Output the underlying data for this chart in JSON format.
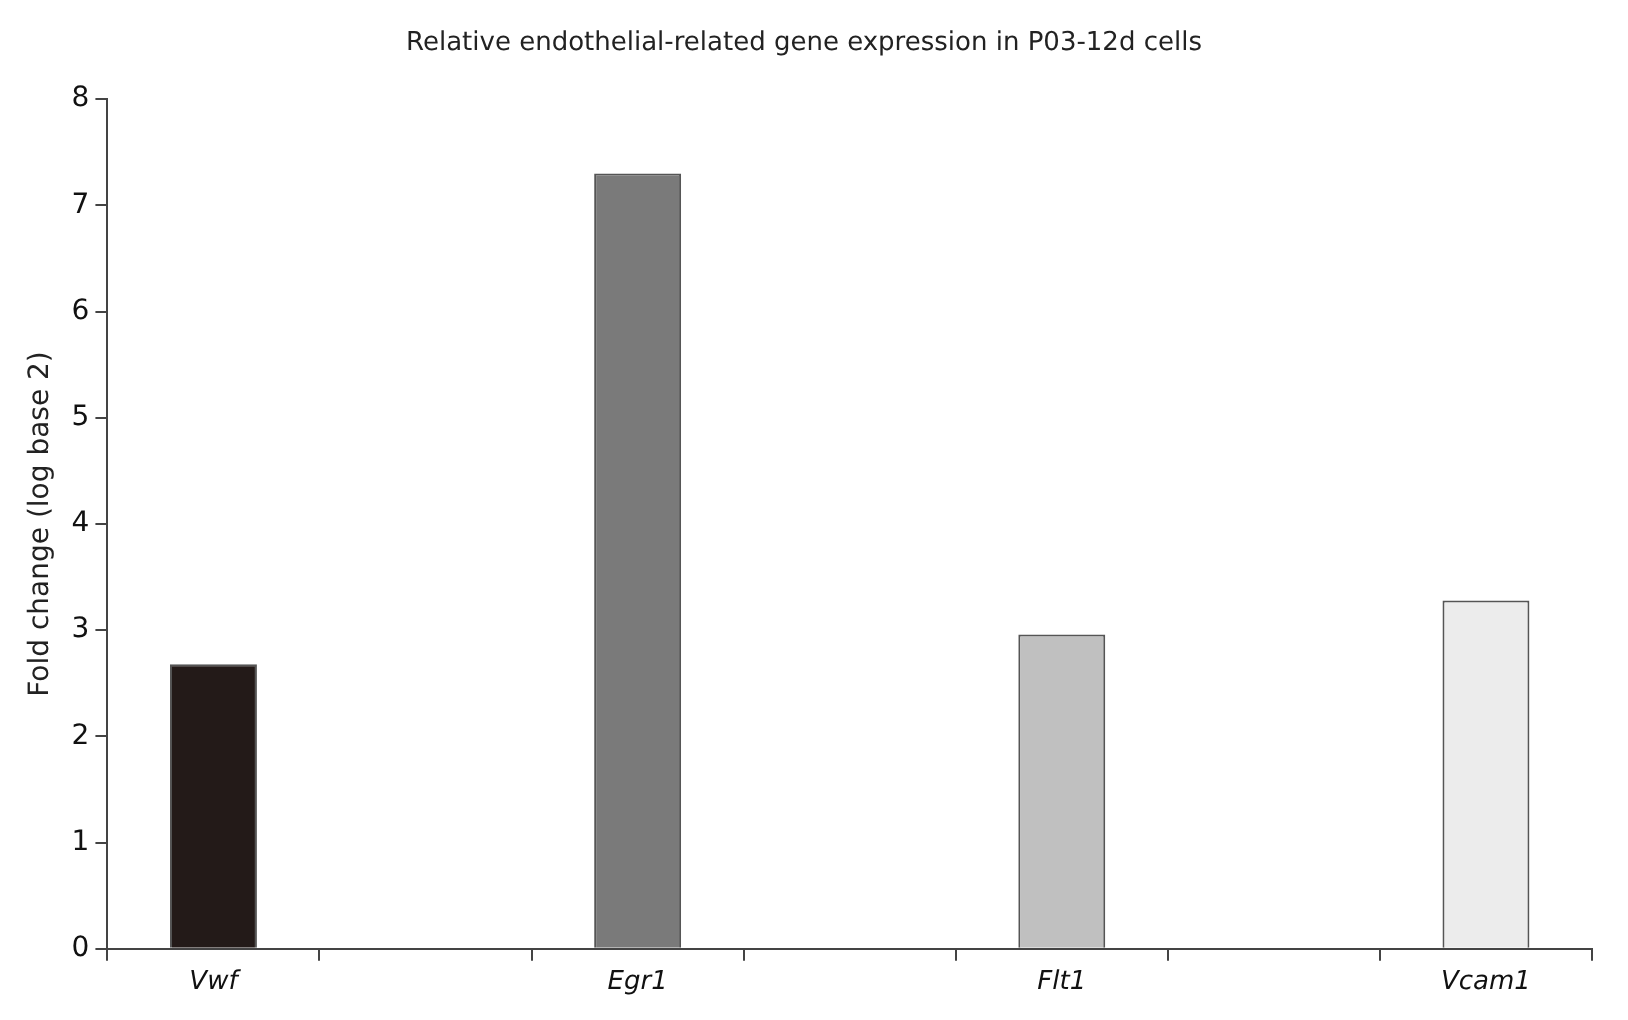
{
  "chart_data": {
    "type": "bar",
    "title": "Relative endothelial-related gene expression in P03-12d cells",
    "ylabel": "Fold change (log base 2)",
    "categories": [
      "Vwf",
      null,
      "Egr1",
      null,
      "Flt1",
      null,
      "Vcam1"
    ],
    "values": [
      2.68,
      null,
      7.3,
      null,
      2.96,
      null,
      3.28
    ],
    "colors": [
      "#231a18",
      null,
      "#7a7a7a",
      null,
      "#c0c0c0",
      null,
      "#ececec"
    ],
    "ylim": [
      0,
      8
    ],
    "yticks": [
      0,
      1,
      2,
      3,
      4,
      5,
      6,
      7,
      8
    ],
    "grid": false,
    "legend": false
  }
}
